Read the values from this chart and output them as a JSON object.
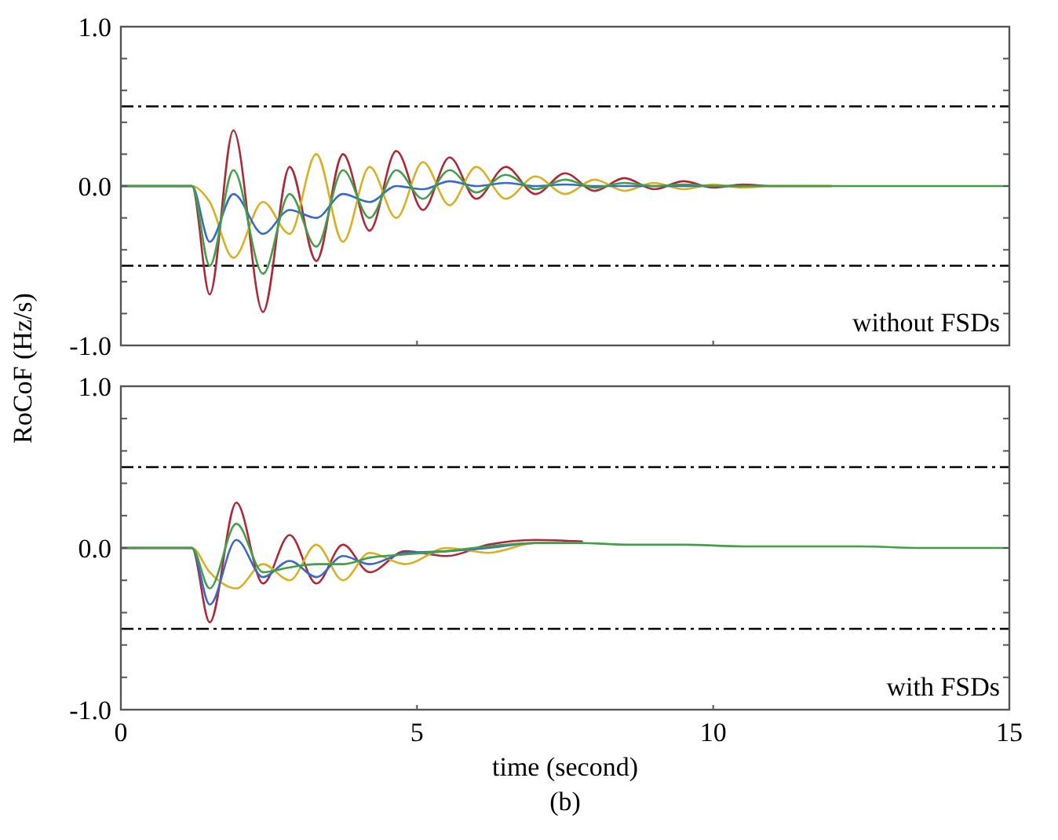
{
  "chart_data": [
    {
      "type": "line",
      "ylabel": "RoCoF  (Hz/s)",
      "xlim": [
        0,
        15
      ],
      "ylim": [
        -1,
        1
      ],
      "xticks": [
        {
          "value": 0,
          "label": null
        },
        {
          "value": 5,
          "label": null
        },
        {
          "value": 10,
          "label": null
        },
        {
          "value": 15,
          "label": null
        }
      ],
      "yticks": [
        {
          "value": -1,
          "label": "-1.0"
        },
        {
          "value": -0.8,
          "label": null
        },
        {
          "value": -0.6,
          "label": null
        },
        {
          "value": -0.4,
          "label": null
        },
        {
          "value": -0.2,
          "label": null
        },
        {
          "value": 0,
          "label": "0.0"
        },
        {
          "value": 0.2,
          "label": null
        },
        {
          "value": 0.4,
          "label": null
        },
        {
          "value": 0.6,
          "label": null
        },
        {
          "value": 0.8,
          "label": null
        },
        {
          "value": 1,
          "label": "1.0"
        }
      ],
      "tick_labels": "y",
      "grid": false,
      "x": [
        0,
        1.2,
        1.5,
        1.9,
        2.4,
        2.85,
        3.3,
        3.75,
        4.2,
        4.65,
        5.1,
        5.55,
        6.0,
        6.5,
        7.0,
        7.5,
        8.0,
        8.5,
        9.0,
        9.5,
        10,
        10.5,
        11,
        12,
        13,
        14,
        15
      ],
      "series": [
        {
          "color": "#b02838",
          "values": [
            0,
            0,
            -0.68,
            0.35,
            -0.79,
            0.12,
            -0.47,
            0.2,
            -0.28,
            0.22,
            -0.15,
            0.18,
            -0.08,
            0.12,
            -0.05,
            0.08,
            -0.03,
            0.05,
            -0.02,
            0.03,
            -0.01,
            0.01,
            0,
            0,
            null,
            null,
            null
          ]
        },
        {
          "color": "#d8b020",
          "values": [
            0,
            0,
            -0.1,
            -0.45,
            -0.1,
            -0.3,
            0.2,
            -0.35,
            0.12,
            -0.2,
            0.15,
            -0.12,
            0.12,
            -0.08,
            0.06,
            -0.05,
            0.04,
            -0.03,
            0.02,
            -0.02,
            0.01,
            -0.01,
            0,
            0,
            null,
            null,
            null
          ]
        },
        {
          "color": "#3a6ac8",
          "values": [
            0,
            0,
            -0.35,
            -0.05,
            -0.3,
            -0.15,
            -0.2,
            -0.05,
            -0.1,
            0.0,
            -0.02,
            0.03,
            0.0,
            0.02,
            0.0,
            0.01,
            0,
            0,
            0,
            0,
            0,
            0,
            null,
            null,
            null,
            null,
            null
          ]
        },
        {
          "color": "#40a048",
          "values": [
            0,
            0,
            -0.5,
            0.1,
            -0.55,
            -0.05,
            -0.38,
            0.1,
            -0.2,
            0.1,
            -0.08,
            0.1,
            -0.04,
            0.07,
            -0.02,
            0.04,
            -0.01,
            0.02,
            0,
            0.01,
            0,
            0,
            0,
            0,
            0,
            0,
            0
          ]
        }
      ],
      "ref_lines": [
        {
          "axis": "y",
          "value": 0.5,
          "color": "#000000",
          "line_style": "dashdot"
        },
        {
          "axis": "y",
          "value": -0.5,
          "color": "#000000",
          "line_style": "dashdot"
        }
      ],
      "annotations": [
        "without FSDs"
      ]
    },
    {
      "type": "line",
      "xlabel": "time (second)",
      "xlim": [
        0,
        15
      ],
      "ylim": [
        -1,
        1
      ],
      "xticks": [
        0,
        5,
        10,
        15
      ],
      "yticks": [
        {
          "value": -1,
          "label": "-1.0"
        },
        {
          "value": -0.8,
          "label": null
        },
        {
          "value": -0.6,
          "label": null
        },
        {
          "value": -0.4,
          "label": null
        },
        {
          "value": -0.2,
          "label": null
        },
        {
          "value": 0,
          "label": "0.0"
        },
        {
          "value": 0.2,
          "label": null
        },
        {
          "value": 0.4,
          "label": null
        },
        {
          "value": 0.6,
          "label": null
        },
        {
          "value": 0.8,
          "label": null
        },
        {
          "value": 1,
          "label": "1.0"
        }
      ],
      "grid": false,
      "x": [
        0,
        1.2,
        1.5,
        1.95,
        2.4,
        2.85,
        3.3,
        3.75,
        4.2,
        4.8,
        5.5,
        6.2,
        7.0,
        7.8,
        8.6,
        9.5,
        10.5,
        11.5,
        12.5,
        13.5,
        15
      ],
      "series": [
        {
          "color": "#b02838",
          "values": [
            0,
            0,
            -0.46,
            0.28,
            -0.22,
            0.08,
            -0.22,
            0.02,
            -0.15,
            -0.02,
            -0.05,
            0.02,
            0.05,
            0.04,
            null,
            null,
            null,
            null,
            null,
            null,
            null
          ]
        },
        {
          "color": "#d8b020",
          "values": [
            0,
            0,
            -0.15,
            -0.25,
            -0.1,
            -0.2,
            0.02,
            -0.2,
            -0.03,
            -0.1,
            0.0,
            -0.03,
            0.03,
            0.03,
            null,
            null,
            null,
            null,
            null,
            null,
            null
          ]
        },
        {
          "color": "#3a6ac8",
          "values": [
            0,
            0,
            -0.35,
            0.05,
            -0.18,
            -0.08,
            -0.18,
            -0.05,
            -0.1,
            -0.03,
            -0.02,
            0.0,
            0.03,
            0.03,
            null,
            null,
            null,
            null,
            null,
            null,
            null
          ]
        },
        {
          "color": "#40a048",
          "values": [
            0,
            0,
            -0.25,
            0.15,
            -0.15,
            -0.12,
            -0.1,
            -0.1,
            -0.06,
            -0.04,
            -0.02,
            0.01,
            0.03,
            0.03,
            0.02,
            0.02,
            0.01,
            0.01,
            0.01,
            0.0,
            0
          ]
        }
      ],
      "ref_lines": [
        {
          "axis": "y",
          "value": 0.5,
          "color": "#000000",
          "line_style": "dashdot"
        },
        {
          "axis": "y",
          "value": -0.5,
          "color": "#000000",
          "line_style": "dashdot"
        }
      ],
      "annotations": [
        "with FSDs",
        "(b)"
      ]
    }
  ]
}
